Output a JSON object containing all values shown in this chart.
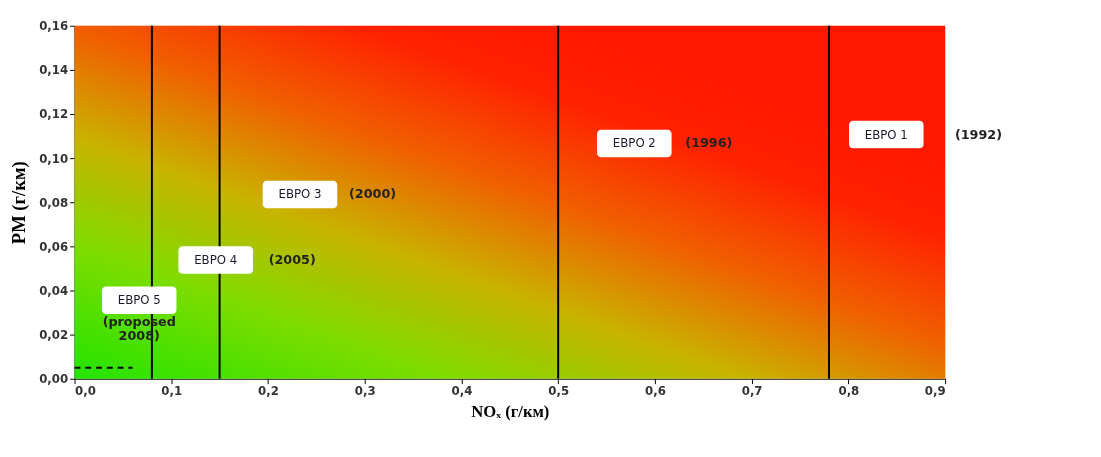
{
  "chart_data": {
    "type": "line",
    "xlabel": "NOₓ (г/км)",
    "ylabel": "PM (г/км)",
    "xlim": [
      0,
      0.9
    ],
    "ylim": [
      0,
      0.16
    ],
    "xticks": [
      {
        "value": 0,
        "label": "0,0"
      },
      {
        "value": 0.1,
        "label": "0,1"
      },
      {
        "value": 0.2,
        "label": "0,2"
      },
      {
        "value": 0.3,
        "label": "0,3"
      },
      {
        "value": 0.4,
        "label": "0,4"
      },
      {
        "value": 0.5,
        "label": "0,5"
      },
      {
        "value": 0.6,
        "label": "0,6"
      },
      {
        "value": 0.7,
        "label": "0,7"
      },
      {
        "value": 0.8,
        "label": "0,8"
      },
      {
        "value": 0.9,
        "label": "0,9"
      }
    ],
    "yticks": [
      {
        "value": 0,
        "label": "0,00"
      },
      {
        "value": 0.02,
        "label": "0,02"
      },
      {
        "value": 0.04,
        "label": "0,04"
      },
      {
        "value": 0.06,
        "label": "0,06"
      },
      {
        "value": 0.08,
        "label": "0,08"
      },
      {
        "value": 0.1,
        "label": "0,10"
      },
      {
        "value": 0.12,
        "label": "0,12"
      },
      {
        "value": 0.14,
        "label": "0,14"
      },
      {
        "value": 0.16,
        "label": "0,16"
      }
    ],
    "series": [
      {
        "x": [
          0,
          0.06
        ],
        "values": [
          0.005,
          0.005
        ],
        "color": "#000000",
        "line_style": "dashed"
      }
    ],
    "ref_lines": [
      {
        "axis": "x",
        "value": 0.08,
        "color": "#000000"
      },
      {
        "axis": "x",
        "value": 0.15,
        "color": "#000000"
      },
      {
        "axis": "x",
        "value": 0.5,
        "color": "#000000"
      },
      {
        "axis": "x",
        "value": 0.78,
        "color": "#000000"
      }
    ],
    "annotations": [
      "ЕВРО 1",
      "(1992)",
      "ЕВРО 2",
      "(1996)",
      "ЕВРО 3",
      "(2000)",
      "ЕВРО 4",
      "(2005)",
      "ЕВРО 5",
      "(proposed 2008)"
    ],
    "marker": "none"
  }
}
